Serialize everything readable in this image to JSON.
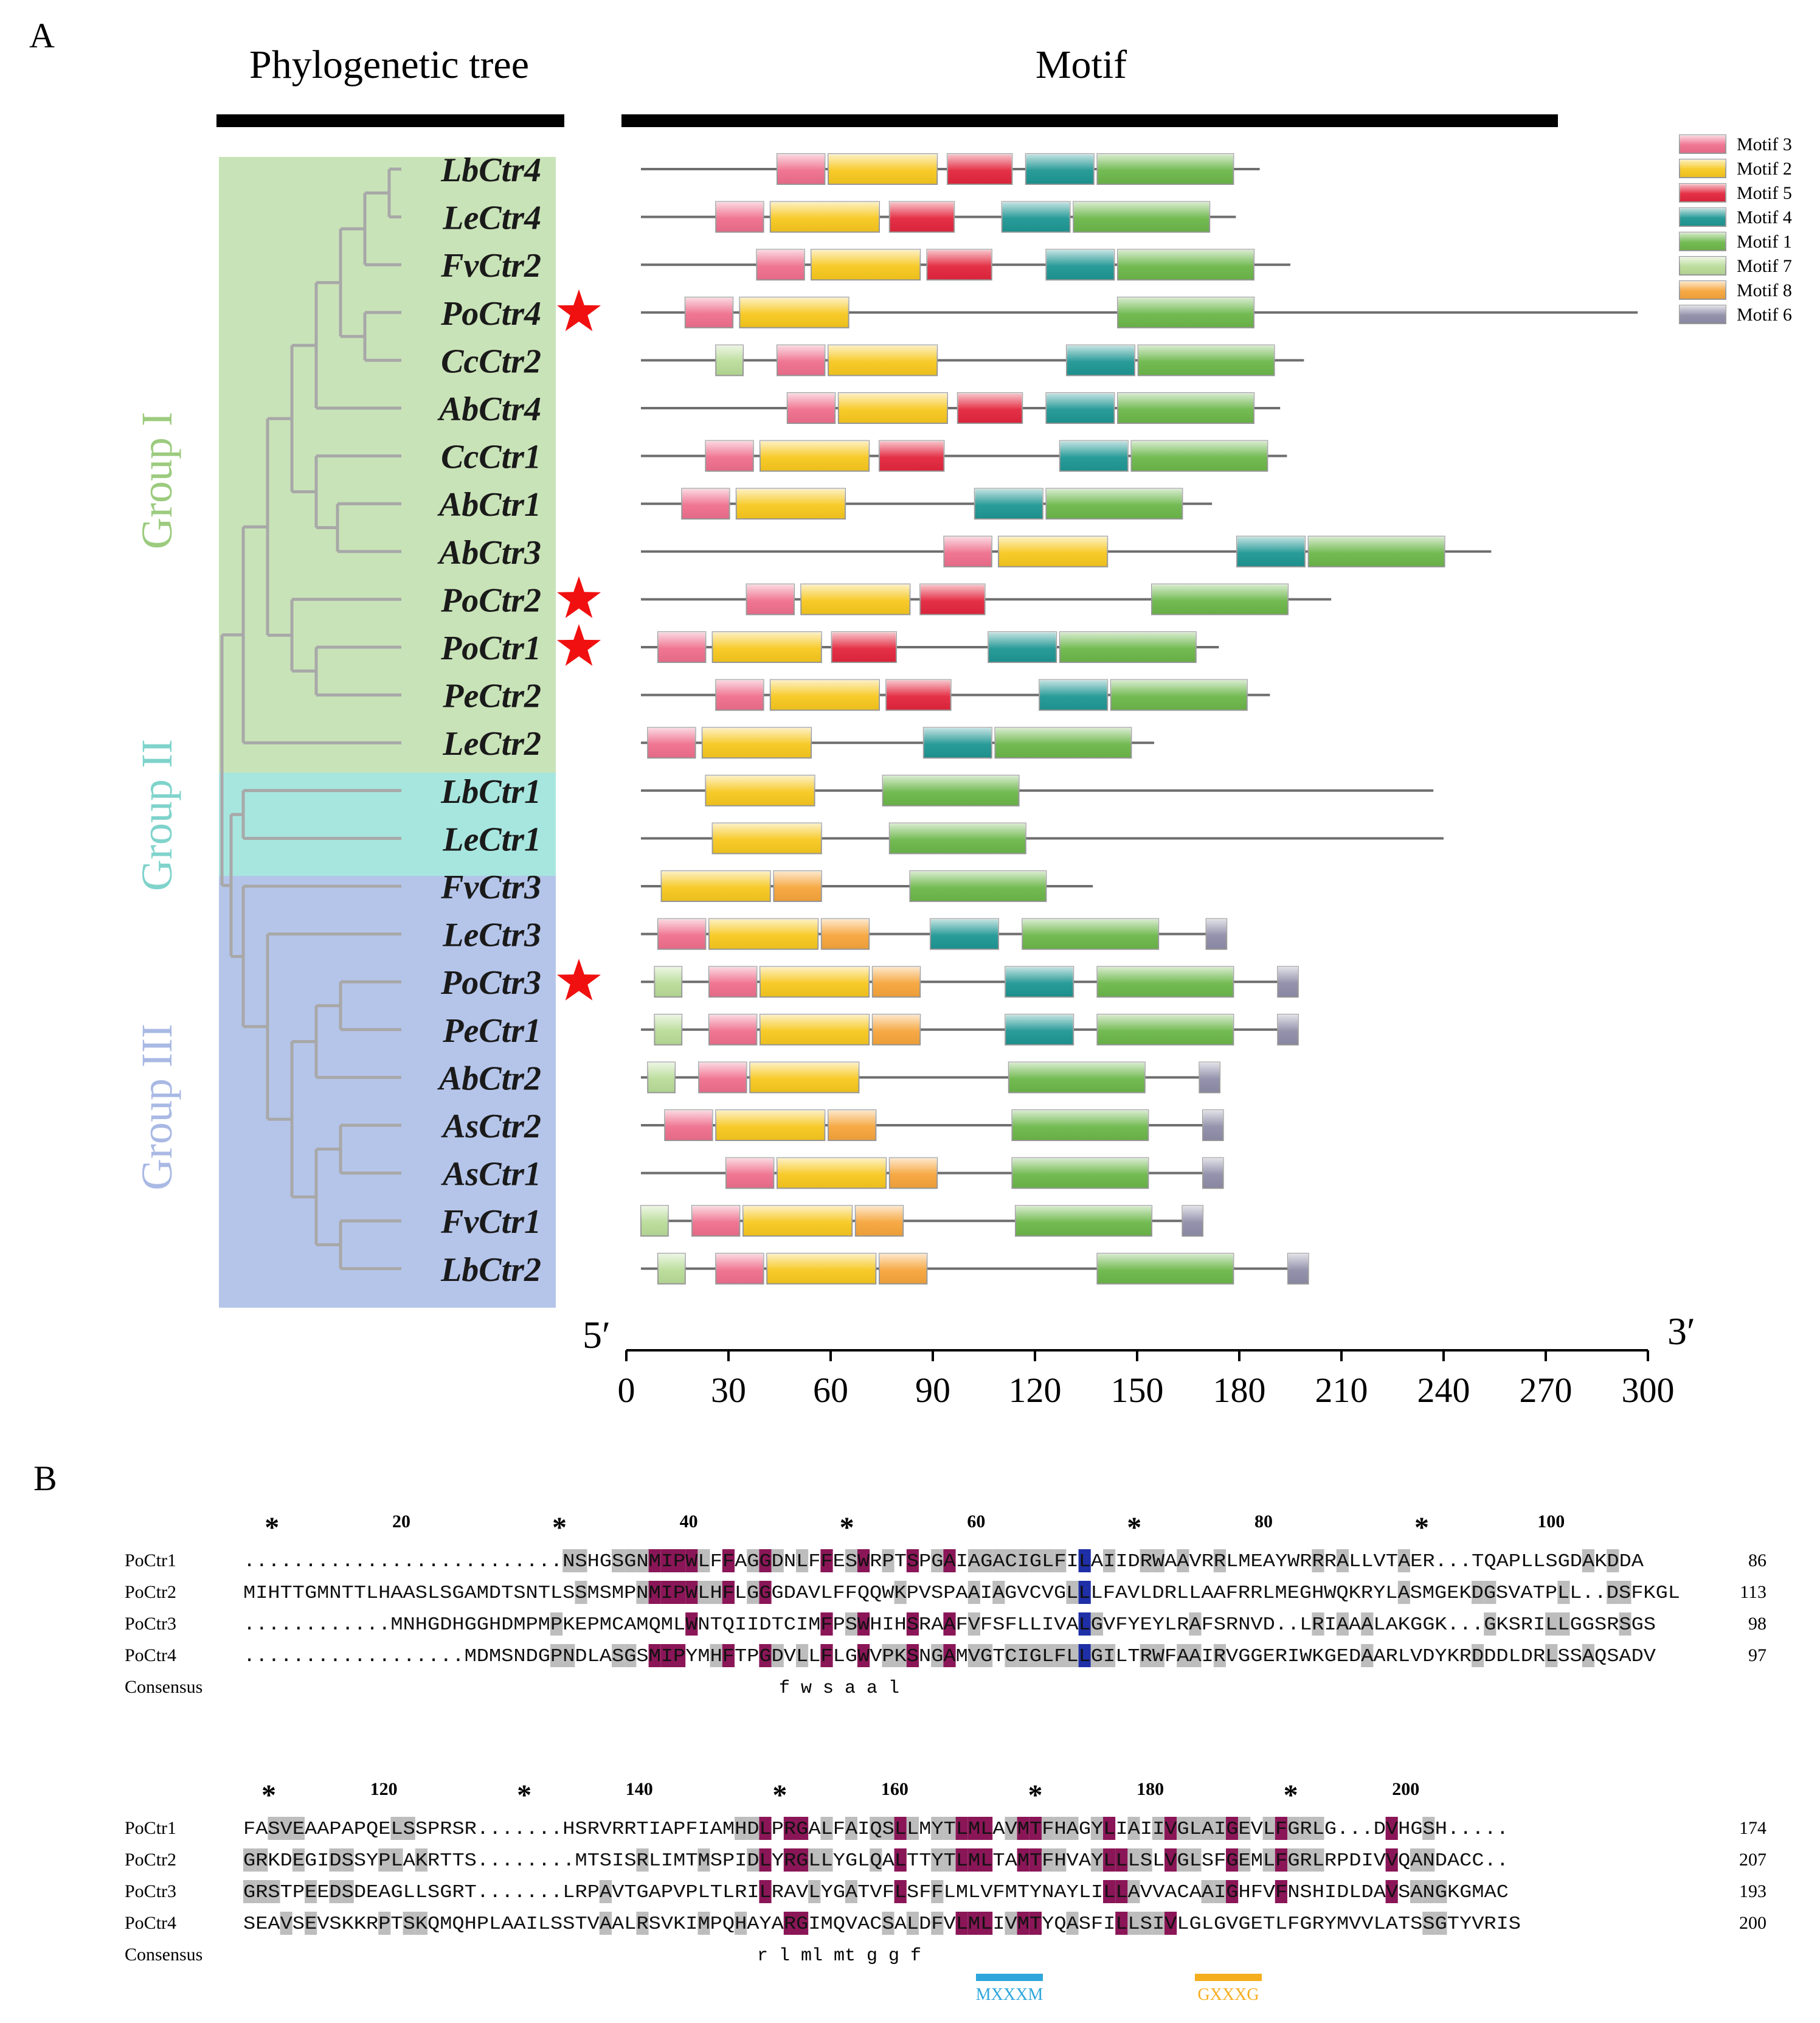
{
  "panels": {
    "a_label": "A",
    "b_label": "B"
  },
  "headers": {
    "tree": "Phylogenetic tree",
    "motif": "Motif"
  },
  "groups": [
    {
      "label": "Group I",
      "color": "#c9e3b8",
      "text_color": "#9ccb7e"
    },
    {
      "label": "Group II",
      "color": "#a7e6df",
      "text_color": "#7fd3cb"
    },
    {
      "label": "Group III",
      "color": "#b5c5ea",
      "text_color": "#a9b9e4"
    }
  ],
  "taxa": [
    "LbCtr4",
    "LeCtr4",
    "FvCtr2",
    "PoCtr4",
    "CcCtr2",
    "AbCtr4",
    "CcCtr1",
    "AbCtr1",
    "AbCtr3",
    "PoCtr2",
    "PoCtr1",
    "PeCtr2",
    "LeCtr2",
    "LbCtr1",
    "LeCtr1",
    "FvCtr3",
    "LeCtr3",
    "PoCtr3",
    "PeCtr1",
    "AbCtr2",
    "AsCtr2",
    "AsCtr1",
    "FvCtr1",
    "LbCtr2"
  ],
  "starred": [
    "PoCtr4",
    "PoCtr2",
    "PoCtr1",
    "PoCtr3"
  ],
  "motif_legend": [
    {
      "name": "Motif 3",
      "color": "#ef6f8d"
    },
    {
      "name": "Motif 2",
      "color": "#f7c81f"
    },
    {
      "name": "Motif 5",
      "color": "#e3263d"
    },
    {
      "name": "Motif 4",
      "color": "#1e9693"
    },
    {
      "name": "Motif 1",
      "color": "#6cb74a"
    },
    {
      "name": "Motif 7",
      "color": "#b9dc98"
    },
    {
      "name": "Motif 8",
      "color": "#f6a53b"
    },
    {
      "name": "Motif 6",
      "color": "#8f8da8"
    }
  ],
  "motif_tracks": [
    {
      "taxon": "LbCtr4",
      "length": 186,
      "motifs": [
        {
          "m": "Motif 3",
          "s": 40,
          "e": 54
        },
        {
          "m": "Motif 2",
          "s": 55,
          "e": 87
        },
        {
          "m": "Motif 5",
          "s": 90,
          "e": 109
        },
        {
          "m": "Motif 4",
          "s": 113,
          "e": 133
        },
        {
          "m": "Motif 1",
          "s": 134,
          "e": 174
        }
      ]
    },
    {
      "taxon": "LeCtr4",
      "length": 179,
      "motifs": [
        {
          "m": "Motif 3",
          "s": 22,
          "e": 36
        },
        {
          "m": "Motif 2",
          "s": 38,
          "e": 70
        },
        {
          "m": "Motif 5",
          "s": 73,
          "e": 92
        },
        {
          "m": "Motif 4",
          "s": 106,
          "e": 126
        },
        {
          "m": "Motif 1",
          "s": 127,
          "e": 167
        }
      ]
    },
    {
      "taxon": "FvCtr2",
      "length": 195,
      "motifs": [
        {
          "m": "Motif 3",
          "s": 34,
          "e": 48
        },
        {
          "m": "Motif 2",
          "s": 50,
          "e": 82
        },
        {
          "m": "Motif 5",
          "s": 84,
          "e": 103
        },
        {
          "m": "Motif 4",
          "s": 119,
          "e": 139
        },
        {
          "m": "Motif 1",
          "s": 140,
          "e": 180
        }
      ]
    },
    {
      "taxon": "PoCtr4",
      "length": 297,
      "motifs": [
        {
          "m": "Motif 3",
          "s": 13,
          "e": 27
        },
        {
          "m": "Motif 2",
          "s": 29,
          "e": 61
        },
        {
          "m": "Motif 1",
          "s": 140,
          "e": 180
        }
      ]
    },
    {
      "taxon": "CcCtr2",
      "length": 199,
      "motifs": [
        {
          "m": "Motif 7",
          "s": 22,
          "e": 30
        },
        {
          "m": "Motif 3",
          "s": 40,
          "e": 54
        },
        {
          "m": "Motif 2",
          "s": 55,
          "e": 87
        },
        {
          "m": "Motif 4",
          "s": 125,
          "e": 145
        },
        {
          "m": "Motif 1",
          "s": 146,
          "e": 186
        }
      ]
    },
    {
      "taxon": "AbCtr4",
      "length": 192,
      "motifs": [
        {
          "m": "Motif 3",
          "s": 43,
          "e": 57
        },
        {
          "m": "Motif 2",
          "s": 58,
          "e": 90
        },
        {
          "m": "Motif 5",
          "s": 93,
          "e": 112
        },
        {
          "m": "Motif 4",
          "s": 119,
          "e": 139
        },
        {
          "m": "Motif 1",
          "s": 140,
          "e": 180
        }
      ]
    },
    {
      "taxon": "CcCtr1",
      "length": 194,
      "motifs": [
        {
          "m": "Motif 3",
          "s": 19,
          "e": 33
        },
        {
          "m": "Motif 2",
          "s": 35,
          "e": 67
        },
        {
          "m": "Motif 5",
          "s": 70,
          "e": 89
        },
        {
          "m": "Motif 4",
          "s": 123,
          "e": 143
        },
        {
          "m": "Motif 1",
          "s": 144,
          "e": 184
        }
      ]
    },
    {
      "taxon": "AbCtr1",
      "length": 172,
      "motifs": [
        {
          "m": "Motif 3",
          "s": 12,
          "e": 26
        },
        {
          "m": "Motif 2",
          "s": 28,
          "e": 60
        },
        {
          "m": "Motif 4",
          "s": 98,
          "e": 118
        },
        {
          "m": "Motif 1",
          "s": 119,
          "e": 159
        }
      ]
    },
    {
      "taxon": "AbCtr3",
      "length": 254,
      "motifs": [
        {
          "m": "Motif 3",
          "s": 89,
          "e": 103
        },
        {
          "m": "Motif 2",
          "s": 105,
          "e": 137
        },
        {
          "m": "Motif 4",
          "s": 175,
          "e": 195
        },
        {
          "m": "Motif 1",
          "s": 196,
          "e": 236
        }
      ]
    },
    {
      "taxon": "PoCtr2",
      "length": 207,
      "motifs": [
        {
          "m": "Motif 3",
          "s": 31,
          "e": 45
        },
        {
          "m": "Motif 2",
          "s": 47,
          "e": 79
        },
        {
          "m": "Motif 5",
          "s": 82,
          "e": 101
        },
        {
          "m": "Motif 1",
          "s": 150,
          "e": 190
        }
      ]
    },
    {
      "taxon": "PoCtr1",
      "length": 174,
      "motifs": [
        {
          "m": "Motif 3",
          "s": 5,
          "e": 19
        },
        {
          "m": "Motif 2",
          "s": 21,
          "e": 53
        },
        {
          "m": "Motif 5",
          "s": 56,
          "e": 75
        },
        {
          "m": "Motif 4",
          "s": 102,
          "e": 122
        },
        {
          "m": "Motif 1",
          "s": 123,
          "e": 163
        }
      ]
    },
    {
      "taxon": "PeCtr2",
      "length": 189,
      "motifs": [
        {
          "m": "Motif 3",
          "s": 22,
          "e": 36
        },
        {
          "m": "Motif 2",
          "s": 38,
          "e": 70
        },
        {
          "m": "Motif 5",
          "s": 72,
          "e": 91
        },
        {
          "m": "Motif 4",
          "s": 117,
          "e": 137
        },
        {
          "m": "Motif 1",
          "s": 138,
          "e": 178
        }
      ]
    },
    {
      "taxon": "LeCtr2",
      "length": 155,
      "motifs": [
        {
          "m": "Motif 3",
          "s": 2,
          "e": 16
        },
        {
          "m": "Motif 2",
          "s": 18,
          "e": 50
        },
        {
          "m": "Motif 4",
          "s": 83,
          "e": 103
        },
        {
          "m": "Motif 1",
          "s": 104,
          "e": 144
        }
      ]
    },
    {
      "taxon": "LbCtr1",
      "length": 237,
      "motifs": [
        {
          "m": "Motif 2",
          "s": 19,
          "e": 51
        },
        {
          "m": "Motif 1",
          "s": 71,
          "e": 111
        }
      ]
    },
    {
      "taxon": "LeCtr1",
      "length": 240,
      "motifs": [
        {
          "m": "Motif 2",
          "s": 21,
          "e": 53
        },
        {
          "m": "Motif 1",
          "s": 73,
          "e": 113
        }
      ]
    },
    {
      "taxon": "FvCtr3",
      "length": 137,
      "motifs": [
        {
          "m": "Motif 2",
          "s": 6,
          "e": 38
        },
        {
          "m": "Motif 8",
          "s": 39,
          "e": 53
        },
        {
          "m": "Motif 1",
          "s": 79,
          "e": 119
        }
      ]
    },
    {
      "taxon": "LeCtr3",
      "length": 173,
      "motifs": [
        {
          "m": "Motif 3",
          "s": 5,
          "e": 19
        },
        {
          "m": "Motif 2",
          "s": 20,
          "e": 52
        },
        {
          "m": "Motif 8",
          "s": 53,
          "e": 67
        },
        {
          "m": "Motif 4",
          "s": 85,
          "e": 105
        },
        {
          "m": "Motif 1",
          "s": 112,
          "e": 152
        },
        {
          "m": "Motif 6",
          "s": 166,
          "e": 172
        }
      ]
    },
    {
      "taxon": "PoCtr3",
      "length": 193,
      "motifs": [
        {
          "m": "Motif 7",
          "s": 4,
          "e": 12
        },
        {
          "m": "Motif 3",
          "s": 20,
          "e": 34
        },
        {
          "m": "Motif 2",
          "s": 35,
          "e": 67
        },
        {
          "m": "Motif 8",
          "s": 68,
          "e": 82
        },
        {
          "m": "Motif 4",
          "s": 107,
          "e": 127
        },
        {
          "m": "Motif 1",
          "s": 134,
          "e": 174
        },
        {
          "m": "Motif 6",
          "s": 187,
          "e": 193
        }
      ]
    },
    {
      "taxon": "PeCtr1",
      "length": 193,
      "motifs": [
        {
          "m": "Motif 7",
          "s": 4,
          "e": 12
        },
        {
          "m": "Motif 3",
          "s": 20,
          "e": 34
        },
        {
          "m": "Motif 2",
          "s": 35,
          "e": 67
        },
        {
          "m": "Motif 8",
          "s": 68,
          "e": 82
        },
        {
          "m": "Motif 4",
          "s": 107,
          "e": 127
        },
        {
          "m": "Motif 1",
          "s": 134,
          "e": 174
        },
        {
          "m": "Motif 6",
          "s": 187,
          "e": 193
        }
      ]
    },
    {
      "taxon": "AbCtr2",
      "length": 170,
      "motifs": [
        {
          "m": "Motif 7",
          "s": 2,
          "e": 10
        },
        {
          "m": "Motif 3",
          "s": 17,
          "e": 31
        },
        {
          "m": "Motif 2",
          "s": 32,
          "e": 64
        },
        {
          "m": "Motif 1",
          "s": 108,
          "e": 148
        },
        {
          "m": "Motif 6",
          "s": 164,
          "e": 170
        }
      ]
    },
    {
      "taxon": "AsCtr2",
      "length": 171,
      "motifs": [
        {
          "m": "Motif 3",
          "s": 7,
          "e": 21
        },
        {
          "m": "Motif 2",
          "s": 22,
          "e": 54
        },
        {
          "m": "Motif 8",
          "s": 55,
          "e": 69
        },
        {
          "m": "Motif 1",
          "s": 109,
          "e": 149
        },
        {
          "m": "Motif 6",
          "s": 165,
          "e": 171
        }
      ]
    },
    {
      "taxon": "AsCtr1",
      "length": 171,
      "motifs": [
        {
          "m": "Motif 3",
          "s": 25,
          "e": 39
        },
        {
          "m": "Motif 2",
          "s": 40,
          "e": 72
        },
        {
          "m": "Motif 8",
          "s": 73,
          "e": 87
        },
        {
          "m": "Motif 1",
          "s": 109,
          "e": 149
        },
        {
          "m": "Motif 6",
          "s": 165,
          "e": 171
        }
      ]
    },
    {
      "taxon": "FvCtr1",
      "length": 165,
      "motifs": [
        {
          "m": "Motif 7",
          "s": 0,
          "e": 8
        },
        {
          "m": "Motif 3",
          "s": 15,
          "e": 29
        },
        {
          "m": "Motif 2",
          "s": 30,
          "e": 62
        },
        {
          "m": "Motif 8",
          "s": 63,
          "e": 77
        },
        {
          "m": "Motif 1",
          "s": 110,
          "e": 150
        },
        {
          "m": "Motif 6",
          "s": 159,
          "e": 165
        }
      ]
    },
    {
      "taxon": "LbCtr2",
      "length": 197,
      "motifs": [
        {
          "m": "Motif 7",
          "s": 5,
          "e": 13
        },
        {
          "m": "Motif 3",
          "s": 22,
          "e": 36
        },
        {
          "m": "Motif 2",
          "s": 37,
          "e": 69
        },
        {
          "m": "Motif 8",
          "s": 70,
          "e": 84
        },
        {
          "m": "Motif 1",
          "s": 134,
          "e": 174
        },
        {
          "m": "Motif 6",
          "s": 190,
          "e": 196
        }
      ]
    }
  ],
  "axis": {
    "five_prime": "5′",
    "three_prime": "3′",
    "ticks": [
      0,
      30,
      60,
      90,
      120,
      150,
      180,
      210,
      240,
      270,
      300
    ]
  },
  "alignment": {
    "blocks": [
      {
        "positions": [
          "20",
          "40",
          "60",
          "80",
          "100"
        ],
        "rows": [
          {
            "name": "PoCtr1",
            "seq": "..........................NSHGSGNMIPWLFFAGGDNLFFESWRPTSPGAIAGACIGLFILAIIDRWAAVRRLMEAYWRRRALLVTAER...TQAPLLSGDAKDDA",
            "count": "86"
          },
          {
            "name": "PoCtr2",
            "seq": "MIHTTGMNTTLHAASLSGAMDTSNTLSSMSMPNMIPWLHFLGGGDAVLFFQQWKPVSPAAIAGVCVGLLLFAVLDRLLAAFRRLMEGHWQKRYLASMGEKDGSVATPLL..DSFKGL",
            "count": "113"
          },
          {
            "name": "PoCtr3",
            "seq": "............MNHGDHGGHDMPMPKEPMCAMQMLWNTQIIDTCIMFPSWHIHSRAAFVFSFLLIVALGVFYEYLRAFSRNVD..LRIAAALAKGGK...GKSRILLGGSRSGS",
            "count": "98"
          },
          {
            "name": "PoCtr4",
            "seq": "..................MDMSNDGPNDLASGSMIPYMHFTPGDVLLFLGWVPKSNGAMVGTCIGLFLLGILTRWFAAIRVGGERIWKGEDAARLVDYKRDDDLDRLSSAQSADV",
            "count": "97"
          }
        ],
        "consensus": "f w s a a l"
      },
      {
        "positions": [
          "120",
          "140",
          "160",
          "180",
          "200"
        ],
        "rows": [
          {
            "name": "PoCtr1",
            "seq": "FASVEAAPAPQELSSPRSR.......HSRVRRTIAPFIAMHDLPRGALFAIQSLLMYTLMLAVMTFHAGYLIAIIVGLAIGEVLFGRLG...DVHGSH.....",
            "count": "174"
          },
          {
            "name": "PoCtr2",
            "seq": "GRKDEGIDSSYPLAKRTTS........MTSISRLIMTMSPIDLYRGLLYGLQALTTYTLMLTAMTFHVAYLLLSLVGLSFGEMLFGRLRPDIVVQANDACC..",
            "count": "207"
          },
          {
            "name": "PoCtr3",
            "seq": "GRSTPEEDSDEAGLLSGRT.......LRPAVTGAPVPLTLRILRAVLYGATVFLSFFLMLVFMTYNAYLILLAVVACAAIGHFVFNSHIDLDAVSANGKGMAC",
            "count": "193"
          },
          {
            "name": "PoCtr4",
            "seq": "SEAVSEVSKKRPTSKQMQHPLAAILSSTVAALRSVKIMPQHAYARGIMQVACSALDFVLMLIVMTYQASFILLSIVLGLGVGETLFGRYMVVLATSSGTYVRIS",
            "count": "200"
          }
        ],
        "consensus": "r l ml mt g g f",
        "annotations": [
          {
            "label": "MXXXM",
            "color": "#2ea6dc"
          },
          {
            "label": "GXXXG",
            "color": "#f5ae1e"
          }
        ]
      }
    ],
    "consensus_label": "Consensus"
  }
}
